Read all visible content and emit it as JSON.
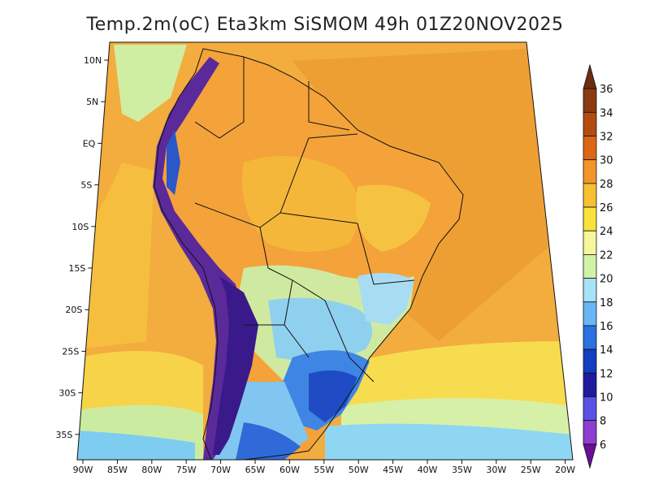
{
  "title": "Temp.2m(oC) Eta3km SiSMOM 49h 01Z20NOV2025",
  "lat_ticks": [
    "10N",
    "5N",
    "EQ",
    "5S",
    "10S",
    "15S",
    "20S",
    "25S",
    "30S",
    "35S"
  ],
  "lon_ticks": [
    "90W",
    "85W",
    "80W",
    "75W",
    "70W",
    "65W",
    "60W",
    "55W",
    "50W",
    "45W",
    "40W",
    "35W",
    "30W",
    "25W",
    "20W"
  ],
  "colorbar": {
    "labels": [
      "36",
      "34",
      "32",
      "30",
      "28",
      "26",
      "24",
      "22",
      "20",
      "18",
      "16",
      "14",
      "12",
      "10",
      "8",
      "6"
    ],
    "colors": [
      "#6b2e10",
      "#8b3a12",
      "#b44c12",
      "#dd6614",
      "#f2962c",
      "#f6c032",
      "#f9e23c",
      "#f6f69a",
      "#d2f2a6",
      "#a6e2f8",
      "#68b6f4",
      "#2a72e0",
      "#123ec2",
      "#1e1c9c",
      "#5a52e6",
      "#8e3ed0",
      "#6a0e96"
    ]
  },
  "palette": {
    "ocean_warm": "#f3ac3e",
    "ocean_mid": "#f9dd5a",
    "ocean_cool": "#d4efa6",
    "ocean_cold": "#7ed0f2",
    "land_hot": "#f3a03a",
    "land_warm": "#f5c23a",
    "andes": "#6e2aa8",
    "south_cool": "#3b7fe0"
  }
}
